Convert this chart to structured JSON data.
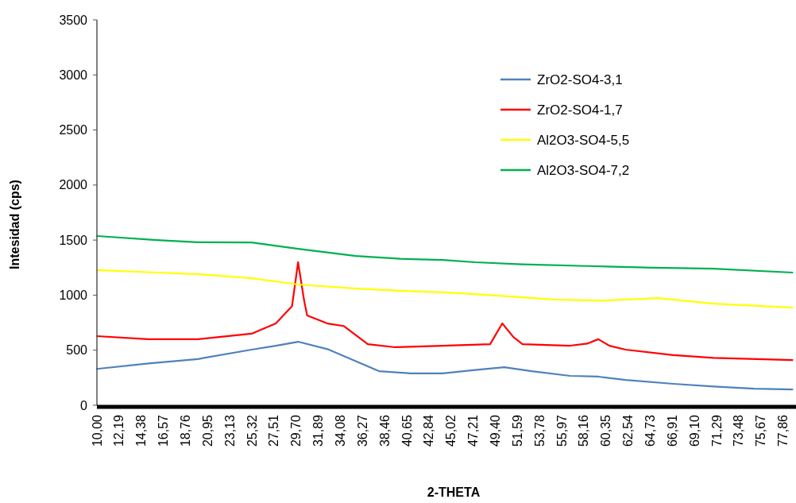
{
  "chart_data": {
    "type": "line",
    "xlabel": "2-THETA",
    "ylabel": "Intesidad (cps)",
    "xlim": [
      10,
      79
    ],
    "ylim": [
      0,
      3500
    ],
    "xticks": [
      {
        "value": 10,
        "label": "10,00"
      },
      {
        "value": 12.19,
        "label": "12,19"
      },
      {
        "value": 14.38,
        "label": "14,38"
      },
      {
        "value": 16.57,
        "label": "16,57"
      },
      {
        "value": 18.76,
        "label": "18,76"
      },
      {
        "value": 20.95,
        "label": "20,95"
      },
      {
        "value": 23.13,
        "label": "23,13"
      },
      {
        "value": 25.32,
        "label": "25,32"
      },
      {
        "value": 27.51,
        "label": "27,51"
      },
      {
        "value": 29.7,
        "label": "29,70"
      },
      {
        "value": 31.89,
        "label": "31,89"
      },
      {
        "value": 34.08,
        "label": "34,08"
      },
      {
        "value": 36.27,
        "label": "36,27"
      },
      {
        "value": 38.46,
        "label": "38,46"
      },
      {
        "value": 40.65,
        "label": "40,65"
      },
      {
        "value": 42.84,
        "label": "42,84"
      },
      {
        "value": 45.02,
        "label": "45,02"
      },
      {
        "value": 47.21,
        "label": "47,21"
      },
      {
        "value": 49.4,
        "label": "49,40"
      },
      {
        "value": 51.59,
        "label": "51,59"
      },
      {
        "value": 53.78,
        "label": "53,78"
      },
      {
        "value": 55.97,
        "label": "55,97"
      },
      {
        "value": 58.16,
        "label": "58,16"
      },
      {
        "value": 60.35,
        "label": "60,35"
      },
      {
        "value": 62.54,
        "label": "62,54"
      },
      {
        "value": 64.73,
        "label": "64,73"
      },
      {
        "value": 66.91,
        "label": "66,91"
      },
      {
        "value": 69.1,
        "label": "69,10"
      },
      {
        "value": 71.29,
        "label": "71,29"
      },
      {
        "value": 73.48,
        "label": "73,48"
      },
      {
        "value": 75.67,
        "label": "75,67"
      },
      {
        "value": 77.86,
        "label": "77,86"
      }
    ],
    "yticks": [
      0,
      500,
      1000,
      1500,
      2000,
      2500,
      3000,
      3500
    ],
    "grid": false,
    "legend": "top right",
    "marker": "none",
    "line_style": "solid",
    "series": [
      {
        "name": "ZrO2-SO4-3,1",
        "color": "#4f81bd",
        "x": [
          10,
          15.1,
          20,
          25.3,
          27.7,
          29.9,
          32.8,
          35.6,
          37.9,
          41,
          44.2,
          47.4,
          50.3,
          53,
          56.8,
          59.6,
          62.3,
          67,
          71,
          75,
          78.8
        ],
        "values": [
          330,
          380,
          420,
          505,
          540,
          577,
          510,
          400,
          310,
          290,
          290,
          320,
          346,
          310,
          267,
          260,
          230,
          195,
          170,
          150,
          144
        ]
      },
      {
        "name": "ZrO2-SO4-1,7",
        "color": "#ff0000",
        "x": [
          10,
          15.1,
          20,
          25.3,
          27.7,
          29.3,
          29.9,
          30.5,
          30.8,
          32.8,
          34.4,
          36.8,
          39.5,
          44.2,
          48.9,
          50.1,
          51.2,
          52.1,
          56.8,
          58.5,
          59.6,
          60.7,
          62.3,
          67,
          71,
          78.8
        ],
        "values": [
          628,
          600,
          600,
          650,
          743,
          900,
          1299,
          950,
          815,
          743,
          720,
          555,
          527,
          541,
          555,
          743,
          620,
          555,
          541,
          560,
          600,
          540,
          505,
          455,
          430,
          411
        ]
      },
      {
        "name": "Al2O3-SO4-5,5",
        "color": "#ffff00",
        "x": [
          10,
          15.9,
          20,
          25.3,
          29.9,
          35.6,
          40,
          44.2,
          47.4,
          55.2,
          60,
          65.5,
          71,
          78.8
        ],
        "values": [
          1227,
          1205,
          1190,
          1154,
          1097,
          1060,
          1040,
          1025,
          1010,
          960,
          950,
          974,
          923,
          887
        ]
      },
      {
        "name": "Al2O3-SO4-7,2",
        "color": "#00b050",
        "x": [
          10,
          15.9,
          20,
          25.3,
          29.9,
          35.6,
          40,
          44.2,
          47.4,
          52,
          59.2,
          65,
          71,
          78.8
        ],
        "values": [
          1537,
          1500,
          1480,
          1479,
          1421,
          1356,
          1330,
          1320,
          1299,
          1280,
          1263,
          1250,
          1241,
          1205
        ]
      }
    ]
  }
}
